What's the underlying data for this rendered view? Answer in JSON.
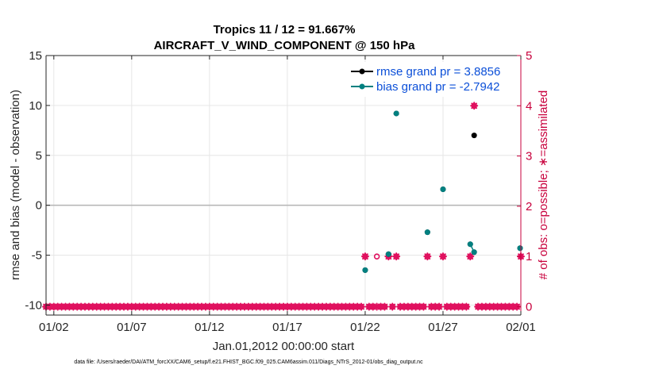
{
  "chart_data": {
    "type": "line",
    "title_line1": "Tropics 11 / 12 = 91.667%",
    "title_line2": "AIRCRAFT_V_WIND_COMPONENT @ 150 hPa",
    "xlabel": "Jan.01,2012 00:00:00 start",
    "ylabel_left": "rmse and bias (model - observation)",
    "ylabel_right": "# of obs: o=possible; ∗=assimilated",
    "xlim": [
      1.5,
      32.0
    ],
    "ylim_left": [
      -11,
      15
    ],
    "ylim_right": [
      -0.1666667,
      5
    ],
    "x_ticks": [
      {
        "value": 2,
        "label": "01/02"
      },
      {
        "value": 7,
        "label": "01/07"
      },
      {
        "value": 12,
        "label": "01/12"
      },
      {
        "value": 17,
        "label": "01/17"
      },
      {
        "value": 22,
        "label": "01/22"
      },
      {
        "value": 27,
        "label": "01/27"
      },
      {
        "value": 32,
        "label": "02/01"
      }
    ],
    "y_ticks_left": [
      {
        "value": 15,
        "label": "15"
      },
      {
        "value": 10,
        "label": "10"
      },
      {
        "value": 5,
        "label": "5"
      },
      {
        "value": 0,
        "label": "0"
      },
      {
        "value": -5,
        "label": "-5"
      },
      {
        "value": -10,
        "label": "-10"
      }
    ],
    "y_ticks_right": [
      {
        "value": 5,
        "label": "5"
      },
      {
        "value": 4,
        "label": "4"
      },
      {
        "value": 3,
        "label": "3"
      },
      {
        "value": 2,
        "label": "2"
      },
      {
        "value": 1,
        "label": "1"
      },
      {
        "value": 0,
        "label": "0"
      }
    ],
    "zero_line": 0,
    "series": [
      {
        "name": "rmse grand pr = 3.8856",
        "color": "#000000",
        "points": [
          [
            22.0,
            -6.5
          ],
          [
            23.5,
            -4.9
          ],
          [
            24.0,
            9.2
          ],
          [
            26.0,
            -2.7
          ],
          [
            27.0,
            1.6
          ],
          [
            28.75,
            -3.9
          ],
          [
            29.0,
            7.0
          ],
          [
            29.0,
            -4.7
          ],
          [
            31.95,
            -4.3
          ]
        ]
      },
      {
        "name": "bias grand pr = -2.7942",
        "color": "#008080",
        "points": [
          [
            22.0,
            -6.5
          ],
          [
            23.5,
            -4.9
          ],
          [
            24.0,
            9.2
          ],
          [
            26.0,
            -2.7
          ],
          [
            27.0,
            1.6
          ],
          [
            28.75,
            -3.9
          ],
          [
            29.0,
            -4.7
          ],
          [
            31.95,
            -4.3
          ]
        ]
      }
    ],
    "obs_possible": {
      "color": "#e0115f",
      "x": [
        1.5,
        1.75,
        2.0,
        2.25,
        2.5,
        2.75,
        3.0,
        3.25,
        3.5,
        3.75,
        4.0,
        4.25,
        4.5,
        4.75,
        5.0,
        5.25,
        5.5,
        5.75,
        6.0,
        6.25,
        6.5,
        6.75,
        7.0,
        7.25,
        7.5,
        7.75,
        8.0,
        8.25,
        8.5,
        8.75,
        9.0,
        9.25,
        9.5,
        9.75,
        10.0,
        10.25,
        10.5,
        10.75,
        11.0,
        11.25,
        11.5,
        11.75,
        12.0,
        12.25,
        12.5,
        12.75,
        13.0,
        13.25,
        13.5,
        13.75,
        14.0,
        14.25,
        14.5,
        14.75,
        15.0,
        15.25,
        15.5,
        15.75,
        16.0,
        16.25,
        16.5,
        16.75,
        17.0,
        17.25,
        17.5,
        17.75,
        18.0,
        18.25,
        18.5,
        18.75,
        19.0,
        19.25,
        19.5,
        19.75,
        20.0,
        20.25,
        20.5,
        20.75,
        21.0,
        21.25,
        21.5,
        21.75,
        22.0,
        22.25,
        22.5,
        22.75,
        23.0,
        23.25,
        23.5,
        23.75,
        24.0,
        24.25,
        24.5,
        24.75,
        25.0,
        25.25,
        25.5,
        25.75,
        26.0,
        26.25,
        26.5,
        26.75,
        27.0,
        27.25,
        27.5,
        27.75,
        28.0,
        28.25,
        28.5,
        28.75,
        29.0,
        29.25,
        29.5,
        29.75,
        30.0,
        30.25,
        30.5,
        30.75,
        31.0,
        31.25,
        31.5,
        31.75,
        32.0
      ],
      "y": [
        0,
        0,
        0,
        0,
        0,
        0,
        0,
        0,
        0,
        0,
        0,
        0,
        0,
        0,
        0,
        0,
        0,
        0,
        0,
        0,
        0,
        0,
        0,
        0,
        0,
        0,
        0,
        0,
        0,
        0,
        0,
        0,
        0,
        0,
        0,
        0,
        0,
        0,
        0,
        0,
        0,
        0,
        0,
        0,
        0,
        0,
        0,
        0,
        0,
        0,
        0,
        0,
        0,
        0,
        0,
        0,
        0,
        0,
        0,
        0,
        0,
        0,
        0,
        0,
        0,
        0,
        0,
        0,
        0,
        0,
        0,
        0,
        0,
        0,
        0,
        0,
        0,
        0,
        0,
        0,
        0,
        0,
        1,
        0,
        0,
        1,
        0,
        0,
        1,
        0,
        1,
        0,
        0,
        0,
        0,
        0,
        0,
        0,
        1,
        0,
        0,
        0,
        1,
        0,
        0,
        0,
        0,
        0,
        0,
        1,
        4,
        0,
        0,
        0,
        0,
        0,
        0,
        0,
        0,
        0,
        0,
        0,
        1
      ]
    },
    "obs_assimilated": {
      "color": "#e0115f",
      "x": [
        1.5,
        1.75,
        2.0,
        2.25,
        2.5,
        2.75,
        3.0,
        3.25,
        3.5,
        3.75,
        4.0,
        4.25,
        4.5,
        4.75,
        5.0,
        5.25,
        5.5,
        5.75,
        6.0,
        6.25,
        6.5,
        6.75,
        7.0,
        7.25,
        7.5,
        7.75,
        8.0,
        8.25,
        8.5,
        8.75,
        9.0,
        9.25,
        9.5,
        9.75,
        10.0,
        10.25,
        10.5,
        10.75,
        11.0,
        11.25,
        11.5,
        11.75,
        12.0,
        12.25,
        12.5,
        12.75,
        13.0,
        13.25,
        13.5,
        13.75,
        14.0,
        14.25,
        14.5,
        14.75,
        15.0,
        15.25,
        15.5,
        15.75,
        16.0,
        16.25,
        16.5,
        16.75,
        17.0,
        17.25,
        17.5,
        17.75,
        18.0,
        18.25,
        18.5,
        18.75,
        19.0,
        19.25,
        19.5,
        19.75,
        20.0,
        20.25,
        20.5,
        20.75,
        21.0,
        21.25,
        21.5,
        21.75,
        22.0,
        22.25,
        22.5,
        22.75,
        23.0,
        23.25,
        23.5,
        23.75,
        24.0,
        24.25,
        24.5,
        24.75,
        25.0,
        25.25,
        25.5,
        25.75,
        26.0,
        26.25,
        26.5,
        26.75,
        27.0,
        27.25,
        27.5,
        27.75,
        28.0,
        28.25,
        28.5,
        28.75,
        29.0,
        29.25,
        29.5,
        29.75,
        30.0,
        30.25,
        30.5,
        30.75,
        31.0,
        31.25,
        31.5,
        31.75,
        32.0
      ],
      "y": [
        0,
        0,
        0,
        0,
        0,
        0,
        0,
        0,
        0,
        0,
        0,
        0,
        0,
        0,
        0,
        0,
        0,
        0,
        0,
        0,
        0,
        0,
        0,
        0,
        0,
        0,
        0,
        0,
        0,
        0,
        0,
        0,
        0,
        0,
        0,
        0,
        0,
        0,
        0,
        0,
        0,
        0,
        0,
        0,
        0,
        0,
        0,
        0,
        0,
        0,
        0,
        0,
        0,
        0,
        0,
        0,
        0,
        0,
        0,
        0,
        0,
        0,
        0,
        0,
        0,
        0,
        0,
        0,
        0,
        0,
        0,
        0,
        0,
        0,
        0,
        0,
        0,
        0,
        0,
        0,
        0,
        0,
        1,
        0,
        0,
        0,
        0,
        0,
        1,
        0,
        1,
        0,
        0,
        0,
        0,
        0,
        0,
        0,
        1,
        0,
        0,
        0,
        1,
        0,
        0,
        0,
        0,
        0,
        0,
        1,
        4,
        0,
        0,
        0,
        0,
        0,
        0,
        0,
        0,
        0,
        0,
        0,
        1
      ]
    },
    "footer": "data file: /Users/raeder/DAI/ATM_forcXX/CAM6_setup/f.e21.FHIST_BGC.f09_025.CAM6assim.011/Diags_NTrS_2012-01/obs_diag_output.nc",
    "colors": {
      "right_axis": "#c8003c",
      "grid": "#e6e6e6",
      "zero_line": "#b4b4b4",
      "legend_text": "#0b4fd8"
    }
  }
}
